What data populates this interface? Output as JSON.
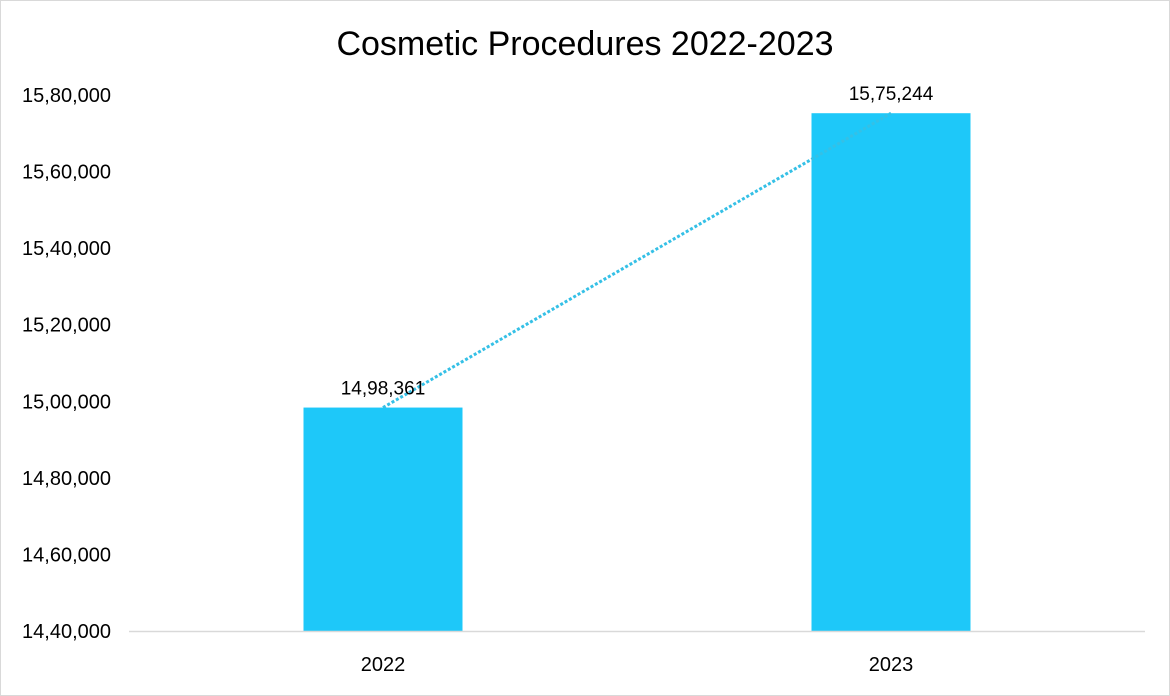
{
  "chart_data": {
    "type": "bar",
    "title": "Cosmetic Procedures 2022-2023",
    "xlabel": "",
    "ylabel": "",
    "categories": [
      "2022",
      "2023"
    ],
    "values": [
      1498361,
      1575244
    ],
    "data_labels": [
      "14,98,361",
      "15,75,244"
    ],
    "ylim": [
      1440000,
      1580000
    ],
    "y_ticks": [
      1440000,
      1460000,
      1480000,
      1500000,
      1520000,
      1540000,
      1560000,
      1580000
    ],
    "y_tick_labels": [
      "14,40,000",
      "14,60,000",
      "14,80,000",
      "15,00,000",
      "15,20,000",
      "15,40,000",
      "15,60,000",
      "15,80,000"
    ],
    "grid": false,
    "legend": "none",
    "trendline": "linear-dotted",
    "colors": {
      "bar": "#1ec8f9",
      "trendline": "#35c0e6",
      "axis": "#d9d9d9"
    }
  }
}
